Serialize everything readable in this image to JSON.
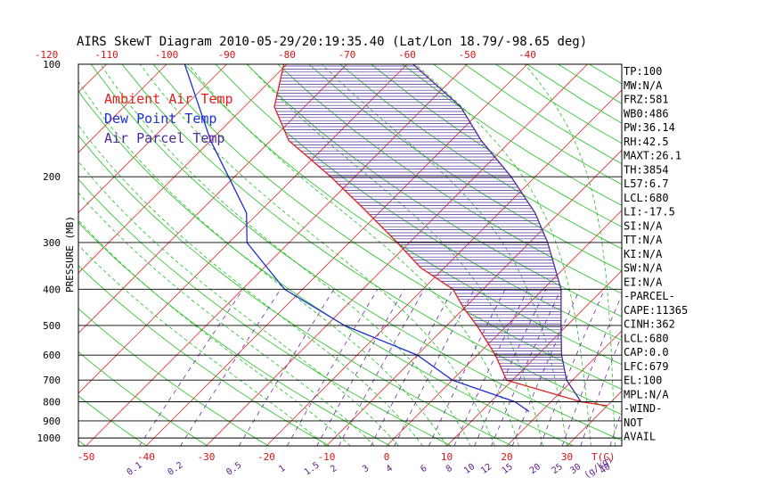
{
  "chart_data": {
    "type": "line",
    "title": "AIRS SkewT Diagram 2010-05-29/20:19:35.40 (Lat/Lon 18.79/-98.65 deg)",
    "ylabel": "PRESSURE (MB)",
    "x_unit_label": "T(C)",
    "mix_unit_label": "(g/kg)",
    "pressure_ticks": [
      "100",
      "200",
      "300",
      "400",
      "500",
      "600",
      "700",
      "800",
      "900",
      "1000"
    ],
    "top_temp_ticks": [
      "-120",
      "-110",
      "-100",
      "-90",
      "-80",
      "-70",
      "-60",
      "-50",
      "-40"
    ],
    "bottom_temp_ticks": [
      "-50",
      "-40",
      "-30",
      "-20",
      "-10",
      "0",
      "10",
      "20",
      "30"
    ],
    "mixing_ratio_labels": [
      "0.1",
      "0.2",
      "0.5",
      "1",
      "1.5",
      "2",
      "3",
      "4",
      "6",
      "8",
      "10",
      "12",
      "15",
      "20",
      "25",
      "30",
      "40"
    ],
    "legend": {
      "placement": "top-left",
      "entries": [
        {
          "name": "Ambient Air Temp",
          "color": "#e02020"
        },
        {
          "name": "Dew Point Temp",
          "color": "#1f2fd0"
        },
        {
          "name": "Air Parcel Temp",
          "color": "#4b2a9a"
        }
      ]
    },
    "series": [
      {
        "name": "Ambient Air Temp",
        "color": "#e02020",
        "points": [
          {
            "p": 100,
            "t": -80.5
          },
          {
            "p": 130,
            "t": -75
          },
          {
            "p": 160,
            "t": -67
          },
          {
            "p": 200,
            "t": -54
          },
          {
            "p": 240,
            "t": -44
          },
          {
            "p": 300,
            "t": -32
          },
          {
            "p": 350,
            "t": -24
          },
          {
            "p": 400,
            "t": -15
          },
          {
            "p": 450,
            "t": -10
          },
          {
            "p": 500,
            "t": -5
          },
          {
            "p": 600,
            "t": 3
          },
          {
            "p": 700,
            "t": 9
          },
          {
            "p": 800,
            "t": 25
          },
          {
            "p": 820,
            "t": 30
          }
        ]
      },
      {
        "name": "Dew Point Temp",
        "color": "#1f2fd0",
        "points": [
          {
            "p": 100,
            "t": -97
          },
          {
            "p": 160,
            "t": -80
          },
          {
            "p": 200,
            "t": -71
          },
          {
            "p": 250,
            "t": -62
          },
          {
            "p": 300,
            "t": -57
          },
          {
            "p": 400,
            "t": -43
          },
          {
            "p": 500,
            "t": -27
          },
          {
            "p": 600,
            "t": -10
          },
          {
            "p": 700,
            "t": 0
          },
          {
            "p": 800,
            "t": 14
          },
          {
            "p": 850,
            "t": 18
          }
        ]
      },
      {
        "name": "Air Parcel Temp",
        "color": "#4b2a9a",
        "points": [
          {
            "p": 100,
            "t": -59
          },
          {
            "p": 130,
            "t": -44
          },
          {
            "p": 160,
            "t": -35
          },
          {
            "p": 200,
            "t": -24
          },
          {
            "p": 250,
            "t": -14
          },
          {
            "p": 300,
            "t": -7
          },
          {
            "p": 400,
            "t": 3
          },
          {
            "p": 500,
            "t": 9
          },
          {
            "p": 600,
            "t": 14
          },
          {
            "p": 700,
            "t": 19
          },
          {
            "p": 800,
            "t": 25
          }
        ]
      }
    ],
    "grid": true,
    "cape_hatching": {
      "from_p": 100,
      "to_p": 700,
      "color": "#4b2a9a"
    }
  },
  "indices": [
    "TP:100",
    "MW:N/A",
    "FRZ:581",
    "WB0:486",
    "PW:36.14",
    "RH:42.5",
    "MAXT:26.1",
    "TH:3854",
    "L57:6.7",
    "LCL:680",
    "LI:-17.5",
    "SI:N/A",
    "TT:N/A",
    "KI:N/A",
    "SW:N/A",
    "EI:N/A",
    "-PARCEL-",
    "CAPE:11365",
    "CINH:362",
    "LCL:680",
    "CAP:0.0",
    "LFC:679",
    "EL:100",
    "MPL:N/A",
    "-WIND-",
    "NOT",
    "AVAIL"
  ],
  "colors": {
    "isotherm": "#e03030",
    "dry_adiabat": "#20c020",
    "moist_adiabat": "#20c020",
    "mixing_ratio": "#6a2aa8",
    "frame": "#000000"
  }
}
